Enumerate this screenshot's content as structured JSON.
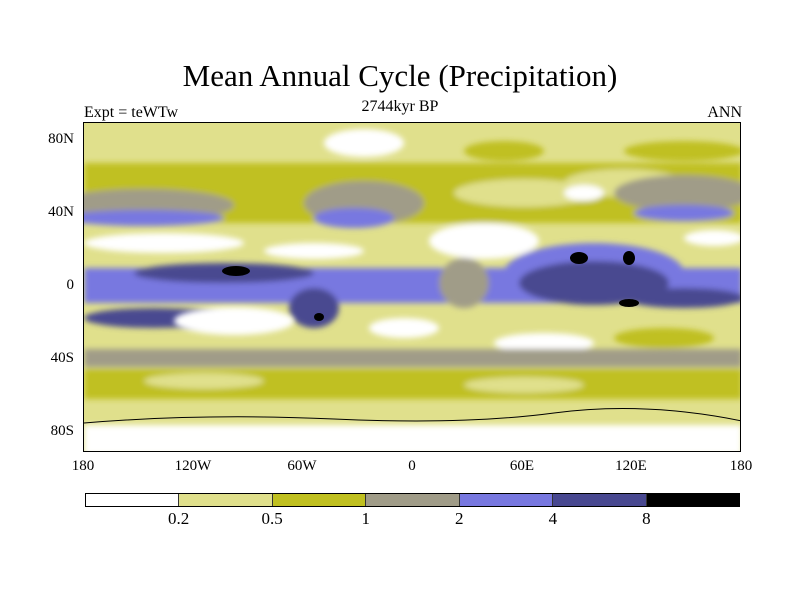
{
  "title": "Mean Annual Cycle (Precipitation)",
  "subtitle": "2744kyr BP",
  "left_label": "Expt = teWTw",
  "right_label": "ANN",
  "map": {
    "lat_ticks": [
      "80N",
      "40N",
      "0",
      "40S",
      "80S"
    ],
    "lon_ticks": [
      "180",
      "120W",
      "60W",
      "0",
      "60E",
      "120E",
      "180"
    ]
  },
  "colorbar": {
    "levels": [
      "0.2",
      "0.5",
      "1",
      "2",
      "4",
      "8"
    ],
    "colors": [
      "#ffffff",
      "#e0e08c",
      "#c0c020",
      "#a09c88",
      "#7878e0",
      "#484890",
      "#000000"
    ]
  }
}
